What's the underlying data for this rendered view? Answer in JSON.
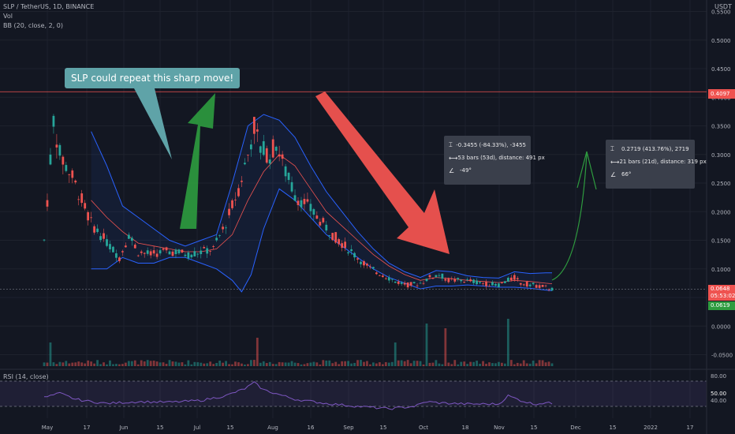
{
  "header": {
    "symbol_line": "SLP / TetherUS, 1D, BINANCE",
    "vol_label": "Vol",
    "bb_label": "BB (20, close, 2, 0)",
    "rsi_label": "RSI (14, close)",
    "currency": "USDT"
  },
  "callout": {
    "text": "SLP could repeat this sharp move!"
  },
  "measure_left": {
    "change": "-0.3455 (-84.33%), -3455",
    "bars": "53 bars (53d), distance: 491 px",
    "angle": "-49°"
  },
  "measure_right": {
    "change": "0.2719 (413.76%), 2719",
    "bars": "21 bars (21d), distance: 319 px",
    "angle": "66°"
  },
  "price_tags": {
    "resistance": "0.4097",
    "current": "0.0648",
    "countdown": "05:53:02",
    "bb_lower": "0.0619"
  },
  "rsi_tags": {
    "upper": "80.00",
    "value": "50.00",
    "lower": "40.00"
  },
  "colors": {
    "background": "#131722",
    "up": "#26a69a",
    "down": "#ef5350",
    "bb_band": "#2962ff",
    "bb_basis": "#ef5350",
    "arrow_green": "#2e9c3f",
    "arrow_red": "#f05350",
    "rsi": "#7e57c2"
  },
  "chart_data": {
    "type": "candlestick",
    "title": "SLP / TetherUS, 1D, BINANCE",
    "y_ticks": [
      "0.5500",
      "0.5000",
      "0.4500",
      "0.4000",
      "0.3500",
      "0.3000",
      "0.2500",
      "0.2000",
      "0.1500",
      "0.1000",
      "0.0500",
      "0.0000",
      "-0.0500"
    ],
    "x_ticks": [
      "May",
      "17",
      "Jun",
      "15",
      "Jul",
      "15",
      "Aug",
      "16",
      "Sep",
      "15",
      "Oct",
      "18",
      "Nov",
      "15",
      "Dec",
      "15",
      "2022",
      "17"
    ],
    "ylim": [
      -0.07,
      0.57
    ],
    "resistance_level": 0.4097,
    "current_price": 0.0648,
    "price_path": [
      [
        0,
        0.15
      ],
      [
        3,
        0.36
      ],
      [
        5,
        0.3
      ],
      [
        9,
        0.26
      ],
      [
        12,
        0.22
      ],
      [
        15,
        0.18
      ],
      [
        18,
        0.16
      ],
      [
        21,
        0.14
      ],
      [
        24,
        0.12
      ],
      [
        27,
        0.16
      ],
      [
        30,
        0.13
      ],
      [
        34,
        0.125
      ],
      [
        38,
        0.13
      ],
      [
        42,
        0.13
      ],
      [
        46,
        0.125
      ],
      [
        50,
        0.13
      ],
      [
        54,
        0.135
      ],
      [
        58,
        0.18
      ],
      [
        62,
        0.24
      ],
      [
        65,
        0.3
      ],
      [
        67,
        0.35
      ],
      [
        69,
        0.31
      ],
      [
        72,
        0.3
      ],
      [
        74,
        0.32
      ],
      [
        77,
        0.27
      ],
      [
        80,
        0.23
      ],
      [
        84,
        0.21
      ],
      [
        88,
        0.185
      ],
      [
        92,
        0.16
      ],
      [
        96,
        0.14
      ],
      [
        100,
        0.12
      ],
      [
        104,
        0.1
      ],
      [
        108,
        0.09
      ],
      [
        112,
        0.078
      ],
      [
        116,
        0.072
      ],
      [
        120,
        0.075
      ],
      [
        123,
        0.085
      ],
      [
        126,
        0.09
      ],
      [
        129,
        0.08
      ],
      [
        133,
        0.08
      ],
      [
        137,
        0.078
      ],
      [
        141,
        0.074
      ],
      [
        145,
        0.072
      ],
      [
        148,
        0.08
      ],
      [
        150,
        0.085
      ],
      [
        152,
        0.075
      ],
      [
        156,
        0.072
      ],
      [
        160,
        0.068
      ],
      [
        162,
        0.0648
      ]
    ],
    "bb_upper": [
      [
        15,
        0.34
      ],
      [
        20,
        0.28
      ],
      [
        25,
        0.21
      ],
      [
        30,
        0.19
      ],
      [
        35,
        0.17
      ],
      [
        40,
        0.15
      ],
      [
        45,
        0.14
      ],
      [
        50,
        0.15
      ],
      [
        55,
        0.16
      ],
      [
        60,
        0.25
      ],
      [
        65,
        0.35
      ],
      [
        70,
        0.37
      ],
      [
        75,
        0.36
      ],
      [
        80,
        0.33
      ],
      [
        85,
        0.28
      ],
      [
        90,
        0.235
      ],
      [
        95,
        0.2
      ],
      [
        100,
        0.165
      ],
      [
        105,
        0.135
      ],
      [
        110,
        0.11
      ],
      [
        115,
        0.095
      ],
      [
        120,
        0.085
      ],
      [
        125,
        0.097
      ],
      [
        130,
        0.095
      ],
      [
        135,
        0.088
      ],
      [
        140,
        0.085
      ],
      [
        145,
        0.084
      ],
      [
        150,
        0.095
      ],
      [
        155,
        0.092
      ],
      [
        160,
        0.093
      ],
      [
        162,
        0.093
      ]
    ],
    "bb_basis": [
      [
        15,
        0.22
      ],
      [
        20,
        0.19
      ],
      [
        25,
        0.165
      ],
      [
        30,
        0.145
      ],
      [
        35,
        0.14
      ],
      [
        40,
        0.135
      ],
      [
        45,
        0.13
      ],
      [
        50,
        0.13
      ],
      [
        55,
        0.135
      ],
      [
        60,
        0.16
      ],
      [
        65,
        0.22
      ],
      [
        70,
        0.27
      ],
      [
        75,
        0.3
      ],
      [
        80,
        0.28
      ],
      [
        85,
        0.24
      ],
      [
        90,
        0.2
      ],
      [
        95,
        0.175
      ],
      [
        100,
        0.15
      ],
      [
        105,
        0.125
      ],
      [
        110,
        0.105
      ],
      [
        115,
        0.09
      ],
      [
        120,
        0.08
      ],
      [
        125,
        0.085
      ],
      [
        130,
        0.083
      ],
      [
        135,
        0.08
      ],
      [
        140,
        0.078
      ],
      [
        145,
        0.076
      ],
      [
        150,
        0.08
      ],
      [
        155,
        0.078
      ],
      [
        160,
        0.075
      ],
      [
        162,
        0.074
      ]
    ],
    "bb_lower": [
      [
        15,
        0.1
      ],
      [
        20,
        0.1
      ],
      [
        25,
        0.12
      ],
      [
        30,
        0.11
      ],
      [
        35,
        0.11
      ],
      [
        40,
        0.12
      ],
      [
        45,
        0.12
      ],
      [
        50,
        0.11
      ],
      [
        55,
        0.1
      ],
      [
        60,
        0.08
      ],
      [
        63,
        0.06
      ],
      [
        66,
        0.09
      ],
      [
        70,
        0.17
      ],
      [
        75,
        0.24
      ],
      [
        80,
        0.22
      ],
      [
        85,
        0.19
      ],
      [
        90,
        0.16
      ],
      [
        95,
        0.14
      ],
      [
        100,
        0.12
      ],
      [
        105,
        0.1
      ],
      [
        110,
        0.085
      ],
      [
        115,
        0.075
      ],
      [
        120,
        0.065
      ],
      [
        125,
        0.07
      ],
      [
        130,
        0.07
      ],
      [
        135,
        0.072
      ],
      [
        140,
        0.07
      ],
      [
        145,
        0.068
      ],
      [
        150,
        0.068
      ],
      [
        155,
        0.066
      ],
      [
        160,
        0.063
      ],
      [
        162,
        0.0619
      ]
    ],
    "volume_spikes": [
      [
        2,
        0.5
      ],
      [
        68,
        0.6
      ],
      [
        112,
        0.5
      ],
      [
        122,
        0.9
      ],
      [
        128,
        0.8
      ],
      [
        148,
        1.0
      ]
    ],
    "rsi_path": [
      [
        0,
        55
      ],
      [
        5,
        62
      ],
      [
        10,
        52
      ],
      [
        15,
        48
      ],
      [
        20,
        45
      ],
      [
        30,
        48
      ],
      [
        40,
        47
      ],
      [
        50,
        50
      ],
      [
        58,
        58
      ],
      [
        64,
        70
      ],
      [
        67,
        80
      ],
      [
        70,
        68
      ],
      [
        75,
        60
      ],
      [
        80,
        52
      ],
      [
        90,
        45
      ],
      [
        100,
        40
      ],
      [
        110,
        36
      ],
      [
        118,
        40
      ],
      [
        122,
        48
      ],
      [
        126,
        46
      ],
      [
        130,
        45
      ],
      [
        135,
        44
      ],
      [
        140,
        44
      ],
      [
        145,
        44
      ],
      [
        148,
        58
      ],
      [
        152,
        50
      ],
      [
        156,
        44
      ],
      [
        160,
        46
      ],
      [
        162,
        45
      ]
    ],
    "rsi_ylim": [
      20,
      100
    ]
  }
}
